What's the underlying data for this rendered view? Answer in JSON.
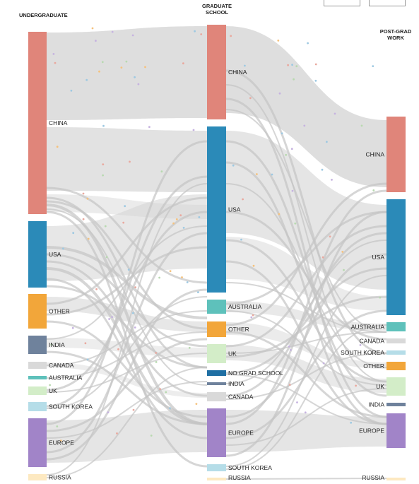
{
  "columns": {
    "undergrad": {
      "title_line1": "UNDERGRADUATE",
      "title_line2": ""
    },
    "grad": {
      "title_line1": "GRADUATE",
      "title_line2": "SCHOOL"
    },
    "post": {
      "title_line1": "POST-GRAD",
      "title_line2": "WORK"
    }
  },
  "palette": {
    "china": "#e0857a",
    "usa": "#2b8ab8",
    "australia": "#5ec1bb",
    "other": "#f2a63a",
    "india": "#6f829c",
    "canada": "#d9d9d9",
    "uk": "#d3edc8",
    "south_korea": "#b5dde8",
    "europe": "#a184c8",
    "russia": "#fde9c1",
    "no_grad": "#1f6fa3",
    "flow": "#d3d3d3"
  },
  "nodes": {
    "undergrad": [
      {
        "id": "china",
        "label": "CHINA",
        "color": "china"
      },
      {
        "id": "usa",
        "label": "USA",
        "color": "usa"
      },
      {
        "id": "other",
        "label": "OTHER",
        "color": "other"
      },
      {
        "id": "india",
        "label": "INDIA",
        "color": "india"
      },
      {
        "id": "canada",
        "label": "CANADA",
        "color": "canada"
      },
      {
        "id": "australia",
        "label": "AUSTRALIA",
        "color": "australia"
      },
      {
        "id": "uk",
        "label": "UK",
        "color": "uk"
      },
      {
        "id": "south_korea",
        "label": "SOUTH KOREA",
        "color": "south_korea"
      },
      {
        "id": "europe",
        "label": "EUROPE",
        "color": "europe"
      },
      {
        "id": "russia",
        "label": "RUSSIA",
        "color": "russia"
      }
    ],
    "grad": [
      {
        "id": "china",
        "label": "CHINA",
        "color": "china"
      },
      {
        "id": "usa",
        "label": "USA",
        "color": "usa"
      },
      {
        "id": "australia",
        "label": "AUSTRALIA",
        "color": "australia"
      },
      {
        "id": "other",
        "label": "OTHER",
        "color": "other"
      },
      {
        "id": "uk",
        "label": "UK",
        "color": "uk"
      },
      {
        "id": "no_grad",
        "label": "NO GRAD SCHOOL",
        "color": "no_grad"
      },
      {
        "id": "india",
        "label": "INDIA",
        "color": "india"
      },
      {
        "id": "canada",
        "label": "CANADA",
        "color": "canada"
      },
      {
        "id": "europe",
        "label": "EUROPE",
        "color": "europe"
      },
      {
        "id": "south_korea",
        "label": "SOUTH KOREA",
        "color": "south_korea"
      },
      {
        "id": "russia",
        "label": "RUSSIA",
        "color": "russia"
      }
    ],
    "post": [
      {
        "id": "china",
        "label": "CHINA",
        "color": "china"
      },
      {
        "id": "usa",
        "label": "USA",
        "color": "usa"
      },
      {
        "id": "australia",
        "label": "AUSTRALIA",
        "color": "australia"
      },
      {
        "id": "canada",
        "label": "CANADA",
        "color": "canada"
      },
      {
        "id": "south_korea",
        "label": "SOUTH KOREA",
        "color": "south_korea"
      },
      {
        "id": "other",
        "label": "OTHER",
        "color": "other"
      },
      {
        "id": "uk",
        "label": "UK",
        "color": "uk"
      },
      {
        "id": "india",
        "label": "INDIA",
        "color": "india"
      },
      {
        "id": "europe",
        "label": "EUROPE",
        "color": "europe"
      },
      {
        "id": "russia",
        "label": "RUSSIA",
        "color": "russia"
      }
    ]
  }
}
